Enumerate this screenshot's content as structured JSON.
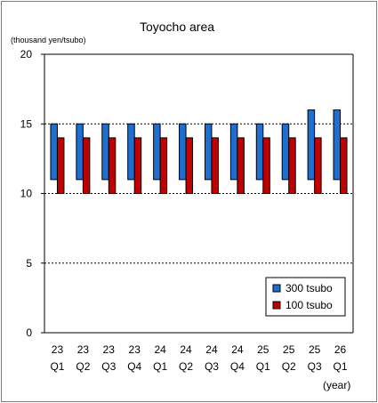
{
  "chart_data": {
    "type": "bar",
    "subtype": "floating-range",
    "title": "Toyocho area",
    "ylabel": "(thousand yen/tsubo)",
    "xlabel": "(year)",
    "ylim": [
      0,
      20
    ],
    "yticks": [
      0,
      5,
      10,
      15,
      20
    ],
    "grid": "horizontal-dashed",
    "legend_position": "bottom-right",
    "categories": [
      [
        "23",
        "Q1"
      ],
      [
        "23",
        "Q2"
      ],
      [
        "23",
        "Q3"
      ],
      [
        "23",
        "Q4"
      ],
      [
        "24",
        "Q1"
      ],
      [
        "24",
        "Q2"
      ],
      [
        "24",
        "Q3"
      ],
      [
        "24",
        "Q4"
      ],
      [
        "25",
        "Q1"
      ],
      [
        "25",
        "Q2"
      ],
      [
        "25",
        "Q3"
      ],
      [
        "26",
        "Q1"
      ]
    ],
    "series": [
      {
        "name": "300 tsubo",
        "color": "#1f6fd1",
        "low": [
          11,
          11,
          11,
          11,
          11,
          11,
          11,
          11,
          11,
          11,
          11,
          11
        ],
        "high": [
          15,
          15,
          15,
          15,
          15,
          15,
          15,
          15,
          15,
          15,
          16,
          16
        ]
      },
      {
        "name": "100 tsubo",
        "color": "#c00000",
        "low": [
          10,
          10,
          10,
          10,
          10,
          10,
          10,
          10,
          10,
          10,
          10,
          10
        ],
        "high": [
          14,
          14,
          14,
          14,
          14,
          14,
          14,
          14,
          14,
          14,
          14,
          14
        ]
      }
    ]
  }
}
